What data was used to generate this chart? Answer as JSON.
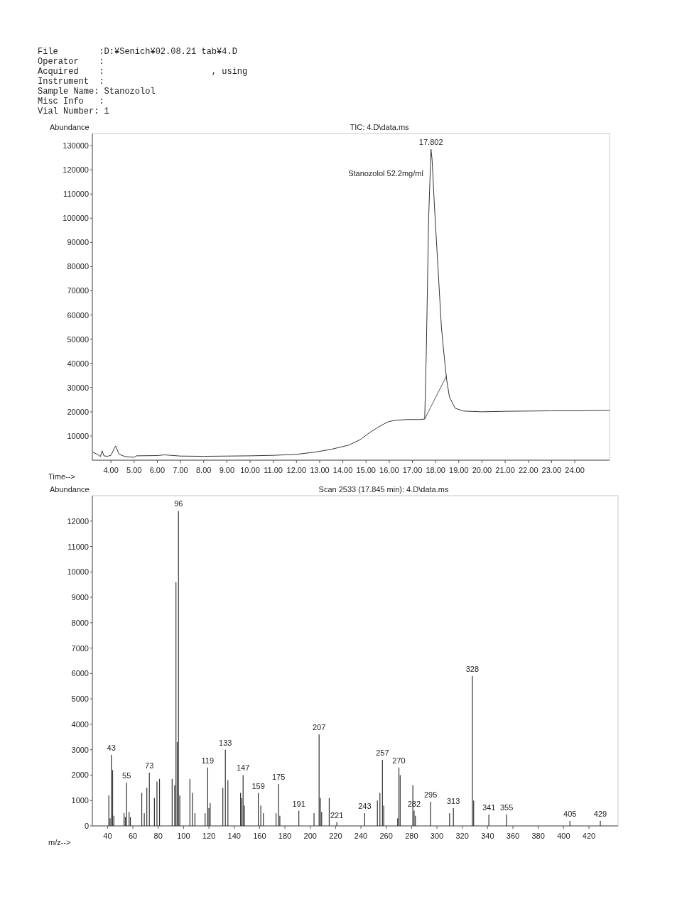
{
  "chart_data": [
    {
      "type": "line",
      "title": "TIC: 4.D\\data.ms",
      "xlabel": "Time-->",
      "ylabel": "Abundance",
      "xlim": [
        3.2,
        25.5
      ],
      "ylim": [
        0,
        135000
      ],
      "xticks": [
        {
          "value": 4,
          "label": "4.00"
        },
        {
          "value": 5,
          "label": "5.00"
        },
        {
          "value": 6,
          "label": "6.00"
        },
        {
          "value": 7,
          "label": "7.00"
        },
        {
          "value": 8,
          "label": "8.00"
        },
        {
          "value": 9,
          "label": "9.00"
        },
        {
          "value": 10,
          "label": "10.00"
        },
        {
          "value": 11,
          "label": "11.00"
        },
        {
          "value": 12,
          "label": "12.00"
        },
        {
          "value": 13,
          "label": "13.00"
        },
        {
          "value": 14,
          "label": "14.00"
        },
        {
          "value": 15,
          "label": "15.00"
        },
        {
          "value": 16,
          "label": "16.00"
        },
        {
          "value": 17,
          "label": "17.00"
        },
        {
          "value": 18,
          "label": "18.00"
        },
        {
          "value": 19,
          "label": "19.00"
        },
        {
          "value": 20,
          "label": "20.00"
        },
        {
          "value": 21,
          "label": "21.00"
        },
        {
          "value": 22,
          "label": "22.00"
        },
        {
          "value": 23,
          "label": "23.00"
        },
        {
          "value": 24,
          "label": "24.00"
        }
      ],
      "yticks": [
        10000,
        20000,
        30000,
        40000,
        50000,
        60000,
        70000,
        80000,
        90000,
        100000,
        110000,
        120000,
        130000
      ],
      "series": [
        {
          "color": "#333333",
          "x": [
            3.22,
            3.45,
            3.55,
            3.62,
            3.7,
            3.85,
            4.0,
            4.2,
            4.35,
            4.6,
            5.0,
            5.1,
            6.0,
            6.3,
            7.0,
            8.0,
            9.0,
            10.0,
            11.0,
            12.0,
            12.85,
            13.5,
            14.25,
            14.75,
            15.17,
            15.5,
            15.78,
            16.0,
            16.3,
            16.8,
            17.3,
            17.53,
            17.6,
            17.7,
            17.802,
            17.85,
            17.95,
            18.1,
            18.25,
            18.38,
            18.48,
            18.6,
            18.84,
            19.2,
            20.0,
            21.0,
            22.0,
            23.0,
            24.0,
            25.5
          ],
          "values": [
            3400,
            2200,
            1500,
            3900,
            1800,
            1600,
            2000,
            5900,
            2500,
            1500,
            1200,
            1800,
            1900,
            2200,
            1700,
            1600,
            1700,
            1800,
            2000,
            2400,
            3400,
            4500,
            6200,
            8500,
            11500,
            13500,
            15000,
            16000,
            16500,
            16800,
            16800,
            17000,
            45000,
            100000,
            128500,
            124000,
            105000,
            80000,
            55000,
            42000,
            33000,
            26000,
            21500,
            20300,
            20000,
            20200,
            20300,
            20400,
            20400,
            20600
          ]
        },
        {
          "color": "#555555",
          "x": [
            17.53,
            18.48
          ],
          "values": [
            17000,
            35000
          ]
        }
      ],
      "annotations": [
        "File        :D:¥Senich¥02.08.21 tab¥4.D",
        "Operator    :",
        "Acquired    :                     , using",
        "Instrument  :",
        "Sample Name: Stanozolol",
        "Misc Info   :",
        "Vial Number: 1",
        {
          "text": "17.802",
          "x": 17.802,
          "y": 128500
        },
        "Stanozolol 52.2mg/ml"
      ]
    },
    {
      "type": "bar",
      "title": "Scan 2533 (17.845 min): 4.D\\data.ms",
      "xlabel": "m/z-->",
      "ylabel": "Abundance",
      "xlim": [
        28,
        443
      ],
      "ylim": [
        0,
        13000
      ],
      "xticks": [
        40,
        60,
        80,
        100,
        120,
        140,
        160,
        180,
        200,
        220,
        240,
        260,
        280,
        300,
        320,
        340,
        360,
        380,
        400,
        420
      ],
      "yticks": [
        0,
        1000,
        2000,
        3000,
        4000,
        5000,
        6000,
        7000,
        8000,
        9000,
        10000,
        11000,
        12000
      ],
      "series": [
        {
          "color": "#333333",
          "x": [
            41,
            42,
            43,
            44,
            45,
            53,
            54,
            55,
            57,
            58,
            67,
            69,
            71,
            73,
            77,
            79,
            81,
            91,
            93,
            94,
            95,
            96,
            97,
            105,
            107,
            109,
            117,
            119,
            120,
            121,
            131,
            133,
            135,
            145,
            146,
            147,
            148,
            159,
            161,
            163,
            173,
            175,
            176,
            191,
            203,
            207,
            208,
            209,
            215,
            221,
            243,
            253,
            255,
            257,
            258,
            269,
            270,
            271,
            281,
            282,
            283,
            295,
            310,
            313,
            328,
            329,
            341,
            355,
            405,
            429
          ],
          "values": [
            1200,
            300,
            2800,
            2200,
            400,
            500,
            350,
            1700,
            550,
            350,
            1300,
            500,
            1500,
            2100,
            1100,
            1750,
            1850,
            1850,
            1600,
            9600,
            3300,
            12400,
            1200,
            1850,
            1300,
            500,
            500,
            2300,
            700,
            900,
            1500,
            3000,
            1800,
            1300,
            1100,
            2000,
            800,
            1300,
            800,
            500,
            500,
            1650,
            400,
            600,
            500,
            3600,
            1100,
            550,
            1100,
            150,
            500,
            1000,
            1300,
            2600,
            800,
            300,
            2300,
            2000,
            1600,
            600,
            400,
            950,
            500,
            700,
            5900,
            1000,
            450,
            450,
            200,
            200
          ]
        }
      ],
      "annotations": [
        {
          "text": "43",
          "x": 43,
          "y": 2800
        },
        {
          "text": "55",
          "x": 55,
          "y": 1700
        },
        {
          "text": "73",
          "x": 73,
          "y": 2100
        },
        {
          "text": "96",
          "x": 96,
          "y": 12400
        },
        {
          "text": "119",
          "x": 119,
          "y": 2300
        },
        {
          "text": "133",
          "x": 133,
          "y": 3000
        },
        {
          "text": "147",
          "x": 147,
          "y": 2000
        },
        {
          "text": "159",
          "x": 159,
          "y": 1300
        },
        {
          "text": "175",
          "x": 175,
          "y": 1650
        },
        {
          "text": "191",
          "x": 191,
          "y": 600
        },
        {
          "text": "207",
          "x": 207,
          "y": 3600
        },
        {
          "text": "221",
          "x": 221,
          "y": 150
        },
        {
          "text": "243",
          "x": 243,
          "y": 500
        },
        {
          "text": "257",
          "x": 257,
          "y": 2600
        },
        {
          "text": "270",
          "x": 270,
          "y": 2300
        },
        {
          "text": "282",
          "x": 282,
          "y": 600
        },
        {
          "text": "295",
          "x": 295,
          "y": 950
        },
        {
          "text": "313",
          "x": 313,
          "y": 700
        },
        {
          "text": "328",
          "x": 328,
          "y": 5900
        },
        {
          "text": "341",
          "x": 341,
          "y": 450
        },
        {
          "text": "355",
          "x": 355,
          "y": 450
        },
        {
          "text": "405",
          "x": 405,
          "y": 200
        },
        {
          "text": "429",
          "x": 429,
          "y": 200
        }
      ]
    }
  ]
}
